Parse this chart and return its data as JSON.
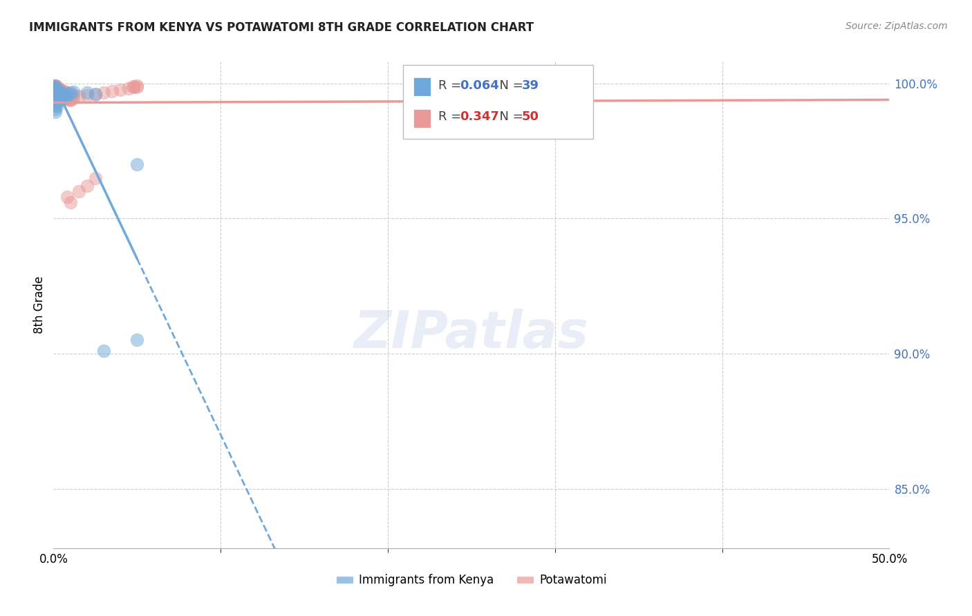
{
  "title": "IMMIGRANTS FROM KENYA VS POTAWATOMI 8TH GRADE CORRELATION CHART",
  "source": "Source: ZipAtlas.com",
  "ylabel": "8th Grade",
  "ylabel_right_values": [
    1.0,
    0.95,
    0.9,
    0.85
  ],
  "kenya_color": "#6fa8dc",
  "potawatomi_color": "#ea9999",
  "kenya_R": 0.064,
  "kenya_N": 39,
  "potawatomi_R": 0.347,
  "potawatomi_N": 50,
  "xmin": 0.0,
  "xmax": 0.5,
  "ymin": 0.828,
  "ymax": 1.008,
  "gridline_y": [
    1.0,
    0.95,
    0.9,
    0.85
  ],
  "kenya_points": [
    [
      0.0005,
      0.999
    ],
    [
      0.0008,
      0.9985
    ],
    [
      0.001,
      0.9978
    ],
    [
      0.0012,
      0.9982
    ],
    [
      0.0015,
      0.9975
    ],
    [
      0.002,
      0.997
    ],
    [
      0.002,
      0.9965
    ],
    [
      0.0025,
      0.9972
    ],
    [
      0.003,
      0.9968
    ],
    [
      0.003,
      0.996
    ],
    [
      0.0035,
      0.9965
    ],
    [
      0.004,
      0.997
    ],
    [
      0.004,
      0.9958
    ],
    [
      0.0045,
      0.9962
    ],
    [
      0.005,
      0.996
    ],
    [
      0.005,
      0.9955
    ],
    [
      0.0055,
      0.9958
    ],
    [
      0.006,
      0.9952
    ],
    [
      0.006,
      0.996
    ],
    [
      0.007,
      0.9955
    ],
    [
      0.007,
      0.9948
    ],
    [
      0.008,
      0.995
    ],
    [
      0.0005,
      0.994
    ],
    [
      0.001,
      0.9935
    ],
    [
      0.002,
      0.993
    ],
    [
      0.003,
      0.9942
    ],
    [
      0.004,
      0.9938
    ],
    [
      0.001,
      0.992
    ],
    [
      0.002,
      0.9915
    ],
    [
      0.001,
      0.9905
    ],
    [
      0.001,
      0.9895
    ],
    [
      0.008,
      0.996
    ],
    [
      0.01,
      0.9965
    ],
    [
      0.012,
      0.9968
    ],
    [
      0.02,
      0.9965
    ],
    [
      0.025,
      0.996
    ],
    [
      0.03,
      0.901
    ],
    [
      0.05,
      0.905
    ],
    [
      0.05,
      0.97
    ]
  ],
  "potawatomi_points": [
    [
      0.0005,
      0.999
    ],
    [
      0.001,
      0.9988
    ],
    [
      0.0015,
      0.9992
    ],
    [
      0.002,
      0.9985
    ],
    [
      0.0025,
      0.998
    ],
    [
      0.003,
      0.9982
    ],
    [
      0.0035,
      0.9978
    ],
    [
      0.004,
      0.9975
    ],
    [
      0.005,
      0.9972
    ],
    [
      0.006,
      0.997
    ],
    [
      0.007,
      0.9968
    ],
    [
      0.008,
      0.9965
    ],
    [
      0.001,
      0.9975
    ],
    [
      0.002,
      0.9972
    ],
    [
      0.003,
      0.9968
    ],
    [
      0.004,
      0.9965
    ],
    [
      0.005,
      0.996
    ],
    [
      0.006,
      0.9958
    ],
    [
      0.007,
      0.9955
    ],
    [
      0.008,
      0.9952
    ],
    [
      0.003,
      0.9958
    ],
    [
      0.004,
      0.9955
    ],
    [
      0.005,
      0.995
    ],
    [
      0.006,
      0.9948
    ],
    [
      0.007,
      0.9945
    ],
    [
      0.008,
      0.9942
    ],
    [
      0.009,
      0.994
    ],
    [
      0.01,
      0.9938
    ],
    [
      0.002,
      0.9945
    ],
    [
      0.003,
      0.9942
    ],
    [
      0.01,
      0.9958
    ],
    [
      0.012,
      0.9955
    ],
    [
      0.015,
      0.9952
    ],
    [
      0.01,
      0.994
    ],
    [
      0.012,
      0.9945
    ],
    [
      0.02,
      0.9955
    ],
    [
      0.025,
      0.9958
    ],
    [
      0.03,
      0.9965
    ],
    [
      0.035,
      0.997
    ],
    [
      0.04,
      0.9975
    ],
    [
      0.045,
      0.998
    ],
    [
      0.048,
      0.9985
    ],
    [
      0.05,
      0.999
    ],
    [
      0.05,
      0.9985
    ],
    [
      0.048,
      0.9988
    ],
    [
      0.015,
      0.96
    ],
    [
      0.02,
      0.962
    ],
    [
      0.008,
      0.958
    ],
    [
      0.01,
      0.956
    ],
    [
      0.025,
      0.965
    ]
  ],
  "background_color": "#ffffff"
}
